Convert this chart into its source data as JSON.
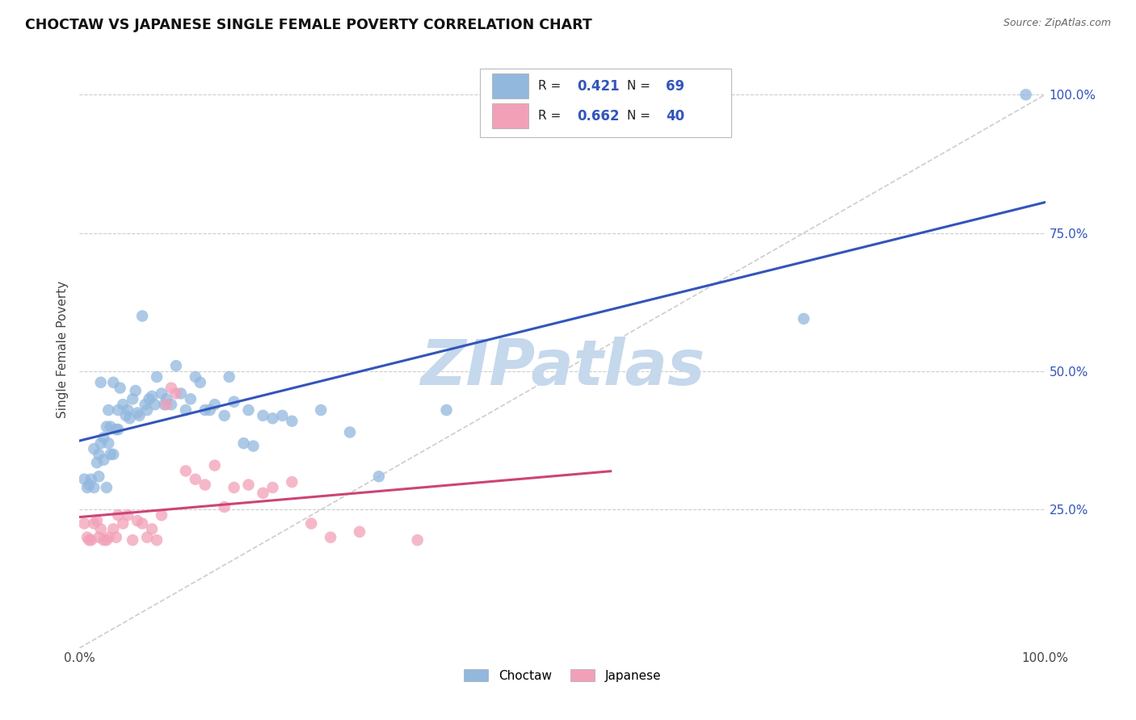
{
  "title": "CHOCTAW VS JAPANESE SINGLE FEMALE POVERTY CORRELATION CHART",
  "source": "Source: ZipAtlas.com",
  "ylabel": "Single Female Poverty",
  "xlim": [
    0,
    1.0
  ],
  "ylim": [
    0,
    1.08
  ],
  "choctaw_color": "#92b8de",
  "japanese_color": "#f2a0b8",
  "line_choctaw_color": "#3355bb",
  "line_japanese_color": "#cc4477",
  "diagonal_color": "#c8c8c8",
  "R_choctaw": "0.421",
  "N_choctaw": "69",
  "R_japanese": "0.662",
  "N_japanese": "40",
  "watermark": "ZIPatlas",
  "watermark_color": "#c5d8ec",
  "choctaw_x": [
    0.005,
    0.008,
    0.01,
    0.012,
    0.015,
    0.015,
    0.018,
    0.02,
    0.02,
    0.022,
    0.022,
    0.025,
    0.025,
    0.028,
    0.028,
    0.03,
    0.03,
    0.032,
    0.032,
    0.035,
    0.035,
    0.038,
    0.04,
    0.04,
    0.042,
    0.045,
    0.048,
    0.05,
    0.052,
    0.055,
    0.058,
    0.06,
    0.062,
    0.065,
    0.068,
    0.07,
    0.072,
    0.075,
    0.078,
    0.08,
    0.085,
    0.088,
    0.09,
    0.095,
    0.1,
    0.105,
    0.11,
    0.115,
    0.12,
    0.125,
    0.13,
    0.135,
    0.14,
    0.15,
    0.155,
    0.16,
    0.17,
    0.175,
    0.18,
    0.19,
    0.2,
    0.21,
    0.22,
    0.25,
    0.28,
    0.31,
    0.38,
    0.75,
    0.98
  ],
  "choctaw_y": [
    0.305,
    0.29,
    0.295,
    0.305,
    0.36,
    0.29,
    0.335,
    0.31,
    0.35,
    0.37,
    0.48,
    0.38,
    0.34,
    0.4,
    0.29,
    0.43,
    0.37,
    0.35,
    0.4,
    0.48,
    0.35,
    0.395,
    0.43,
    0.395,
    0.47,
    0.44,
    0.42,
    0.43,
    0.415,
    0.45,
    0.465,
    0.425,
    0.42,
    0.6,
    0.44,
    0.43,
    0.45,
    0.455,
    0.44,
    0.49,
    0.46,
    0.44,
    0.45,
    0.44,
    0.51,
    0.46,
    0.43,
    0.45,
    0.49,
    0.48,
    0.43,
    0.43,
    0.44,
    0.42,
    0.49,
    0.445,
    0.37,
    0.43,
    0.365,
    0.42,
    0.415,
    0.42,
    0.41,
    0.43,
    0.39,
    0.31,
    0.43,
    0.595,
    1.0
  ],
  "japanese_x": [
    0.005,
    0.008,
    0.01,
    0.012,
    0.015,
    0.018,
    0.02,
    0.022,
    0.025,
    0.028,
    0.03,
    0.035,
    0.038,
    0.04,
    0.045,
    0.05,
    0.055,
    0.06,
    0.065,
    0.07,
    0.075,
    0.08,
    0.085,
    0.09,
    0.095,
    0.1,
    0.11,
    0.12,
    0.13,
    0.14,
    0.15,
    0.16,
    0.175,
    0.19,
    0.2,
    0.22,
    0.24,
    0.26,
    0.29,
    0.35
  ],
  "japanese_y": [
    0.225,
    0.2,
    0.195,
    0.195,
    0.225,
    0.23,
    0.2,
    0.215,
    0.195,
    0.195,
    0.2,
    0.215,
    0.2,
    0.24,
    0.225,
    0.24,
    0.195,
    0.23,
    0.225,
    0.2,
    0.215,
    0.195,
    0.24,
    0.44,
    0.47,
    0.46,
    0.32,
    0.305,
    0.295,
    0.33,
    0.255,
    0.29,
    0.295,
    0.28,
    0.29,
    0.3,
    0.225,
    0.2,
    0.21,
    0.195
  ],
  "legend_box_color": "#f0f0f0",
  "ytick_color": "#3355bb"
}
